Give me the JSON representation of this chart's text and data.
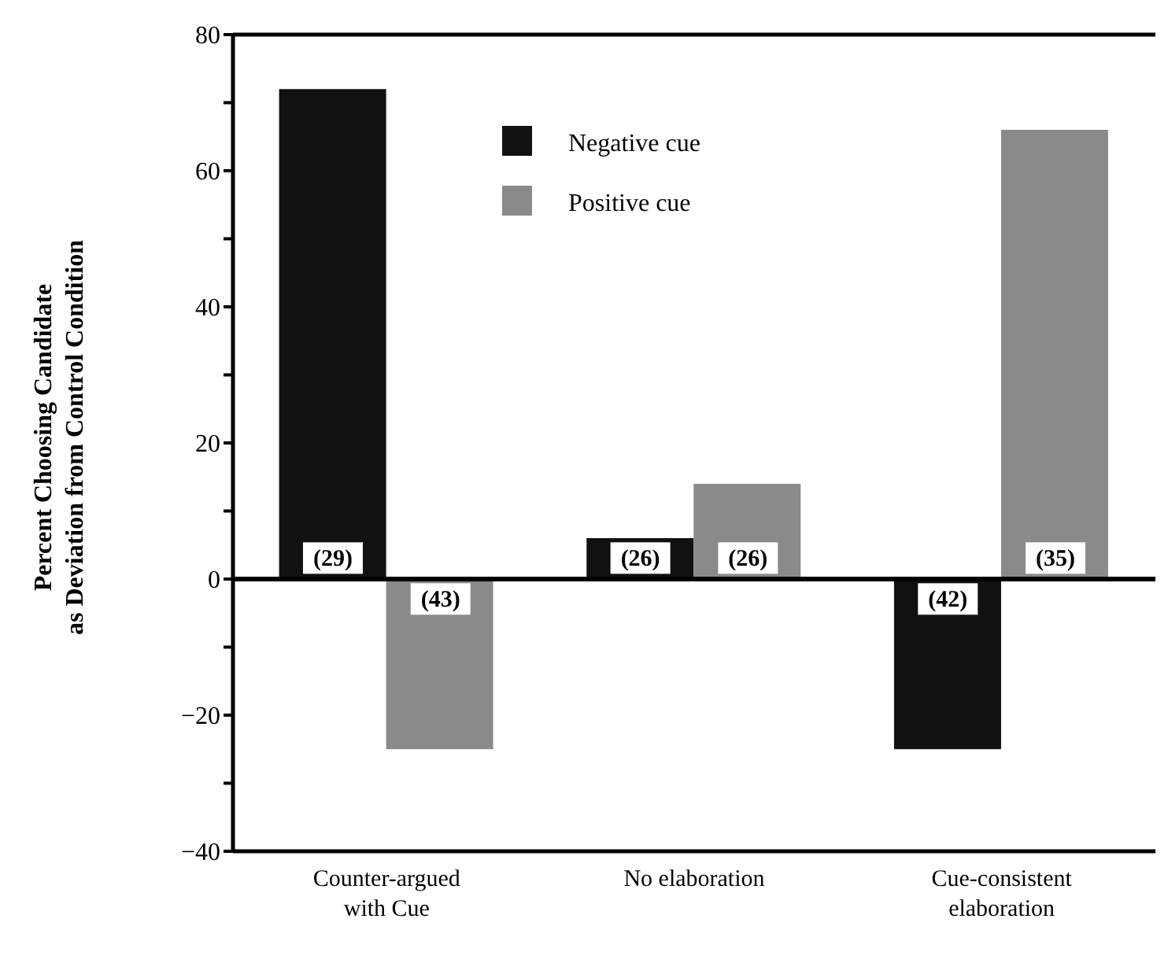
{
  "chart_data": {
    "type": "bar",
    "ylabel": "Percent Choosing Candidate\nas Deviation from Control Condition",
    "categories": [
      "Counter-argued\nwith Cue",
      "No elaboration",
      "Cue-consistent\nelaboration"
    ],
    "series": [
      {
        "name": "Negative cue",
        "color": "#111111",
        "values": [
          72,
          6,
          -25
        ]
      },
      {
        "name": "Positive cue",
        "color": "#8a8a8a",
        "values": [
          -25,
          14,
          66
        ]
      }
    ],
    "annotations": [
      {
        "text": "(29)",
        "x": "Counter-argued\nwith Cue",
        "y": 3
      },
      {
        "text": "(43)",
        "x": "Counter-argued\nwith Cue",
        "y": -3
      },
      {
        "text": "(26)",
        "x": "No elaboration",
        "y": 3
      },
      {
        "text": "(26)",
        "x": "No elaboration",
        "y": 3
      },
      {
        "text": "(42)",
        "x": "Cue-consistent\nelaboration",
        "y": -3
      },
      {
        "text": "(35)",
        "x": "Cue-consistent\nelaboration",
        "y": 3
      }
    ],
    "ylim": [
      -40,
      80
    ],
    "yticks": [
      -40,
      {
        "value": -30,
        "label": null
      },
      {
        "value": -20,
        "label": "−20"
      },
      {
        "value": -10,
        "label": null
      },
      0,
      {
        "value": 10,
        "label": null
      },
      20,
      {
        "value": 30,
        "label": null
      },
      40,
      {
        "value": 50,
        "label": null
      },
      60,
      {
        "value": 70,
        "label": null
      },
      80
    ],
    "legend": "top"
  }
}
